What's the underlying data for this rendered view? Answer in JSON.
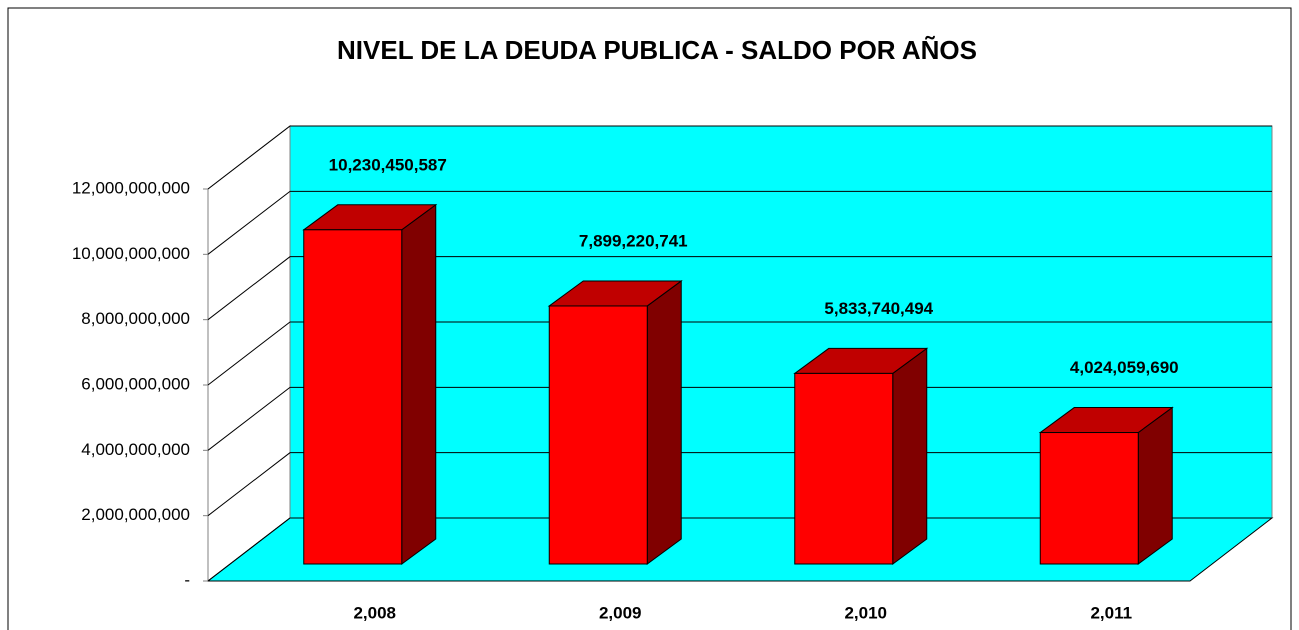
{
  "chart_data": {
    "type": "bar3d",
    "title": "NIVEL DE LA DEUDA PUBLICA - SALDO POR AÑOS",
    "categories": [
      "2,008",
      "2,009",
      "2,010",
      "2,011"
    ],
    "values": [
      10230450587,
      7899220741,
      5833740494,
      4024059690
    ],
    "value_labels": [
      "10,230,450,587",
      "7,899,220,741",
      "5,833,740,494",
      "4,024,059,690"
    ],
    "color": "#ff0000",
    "wall_color": "#00ffff",
    "ylim": [
      0,
      12000000000
    ],
    "yticks": [
      {
        "value": 0,
        "label": "-"
      },
      {
        "value": 2000000000,
        "label": "2,000,000,000"
      },
      {
        "value": 4000000000,
        "label": "4,000,000,000"
      },
      {
        "value": 6000000000,
        "label": "6,000,000,000"
      },
      {
        "value": 8000000000,
        "label": "8,000,000,000"
      },
      {
        "value": 10000000000,
        "label": "10,000,000,000"
      },
      {
        "value": 12000000000,
        "label": "12,000,000,000"
      }
    ],
    "grid": true
  }
}
